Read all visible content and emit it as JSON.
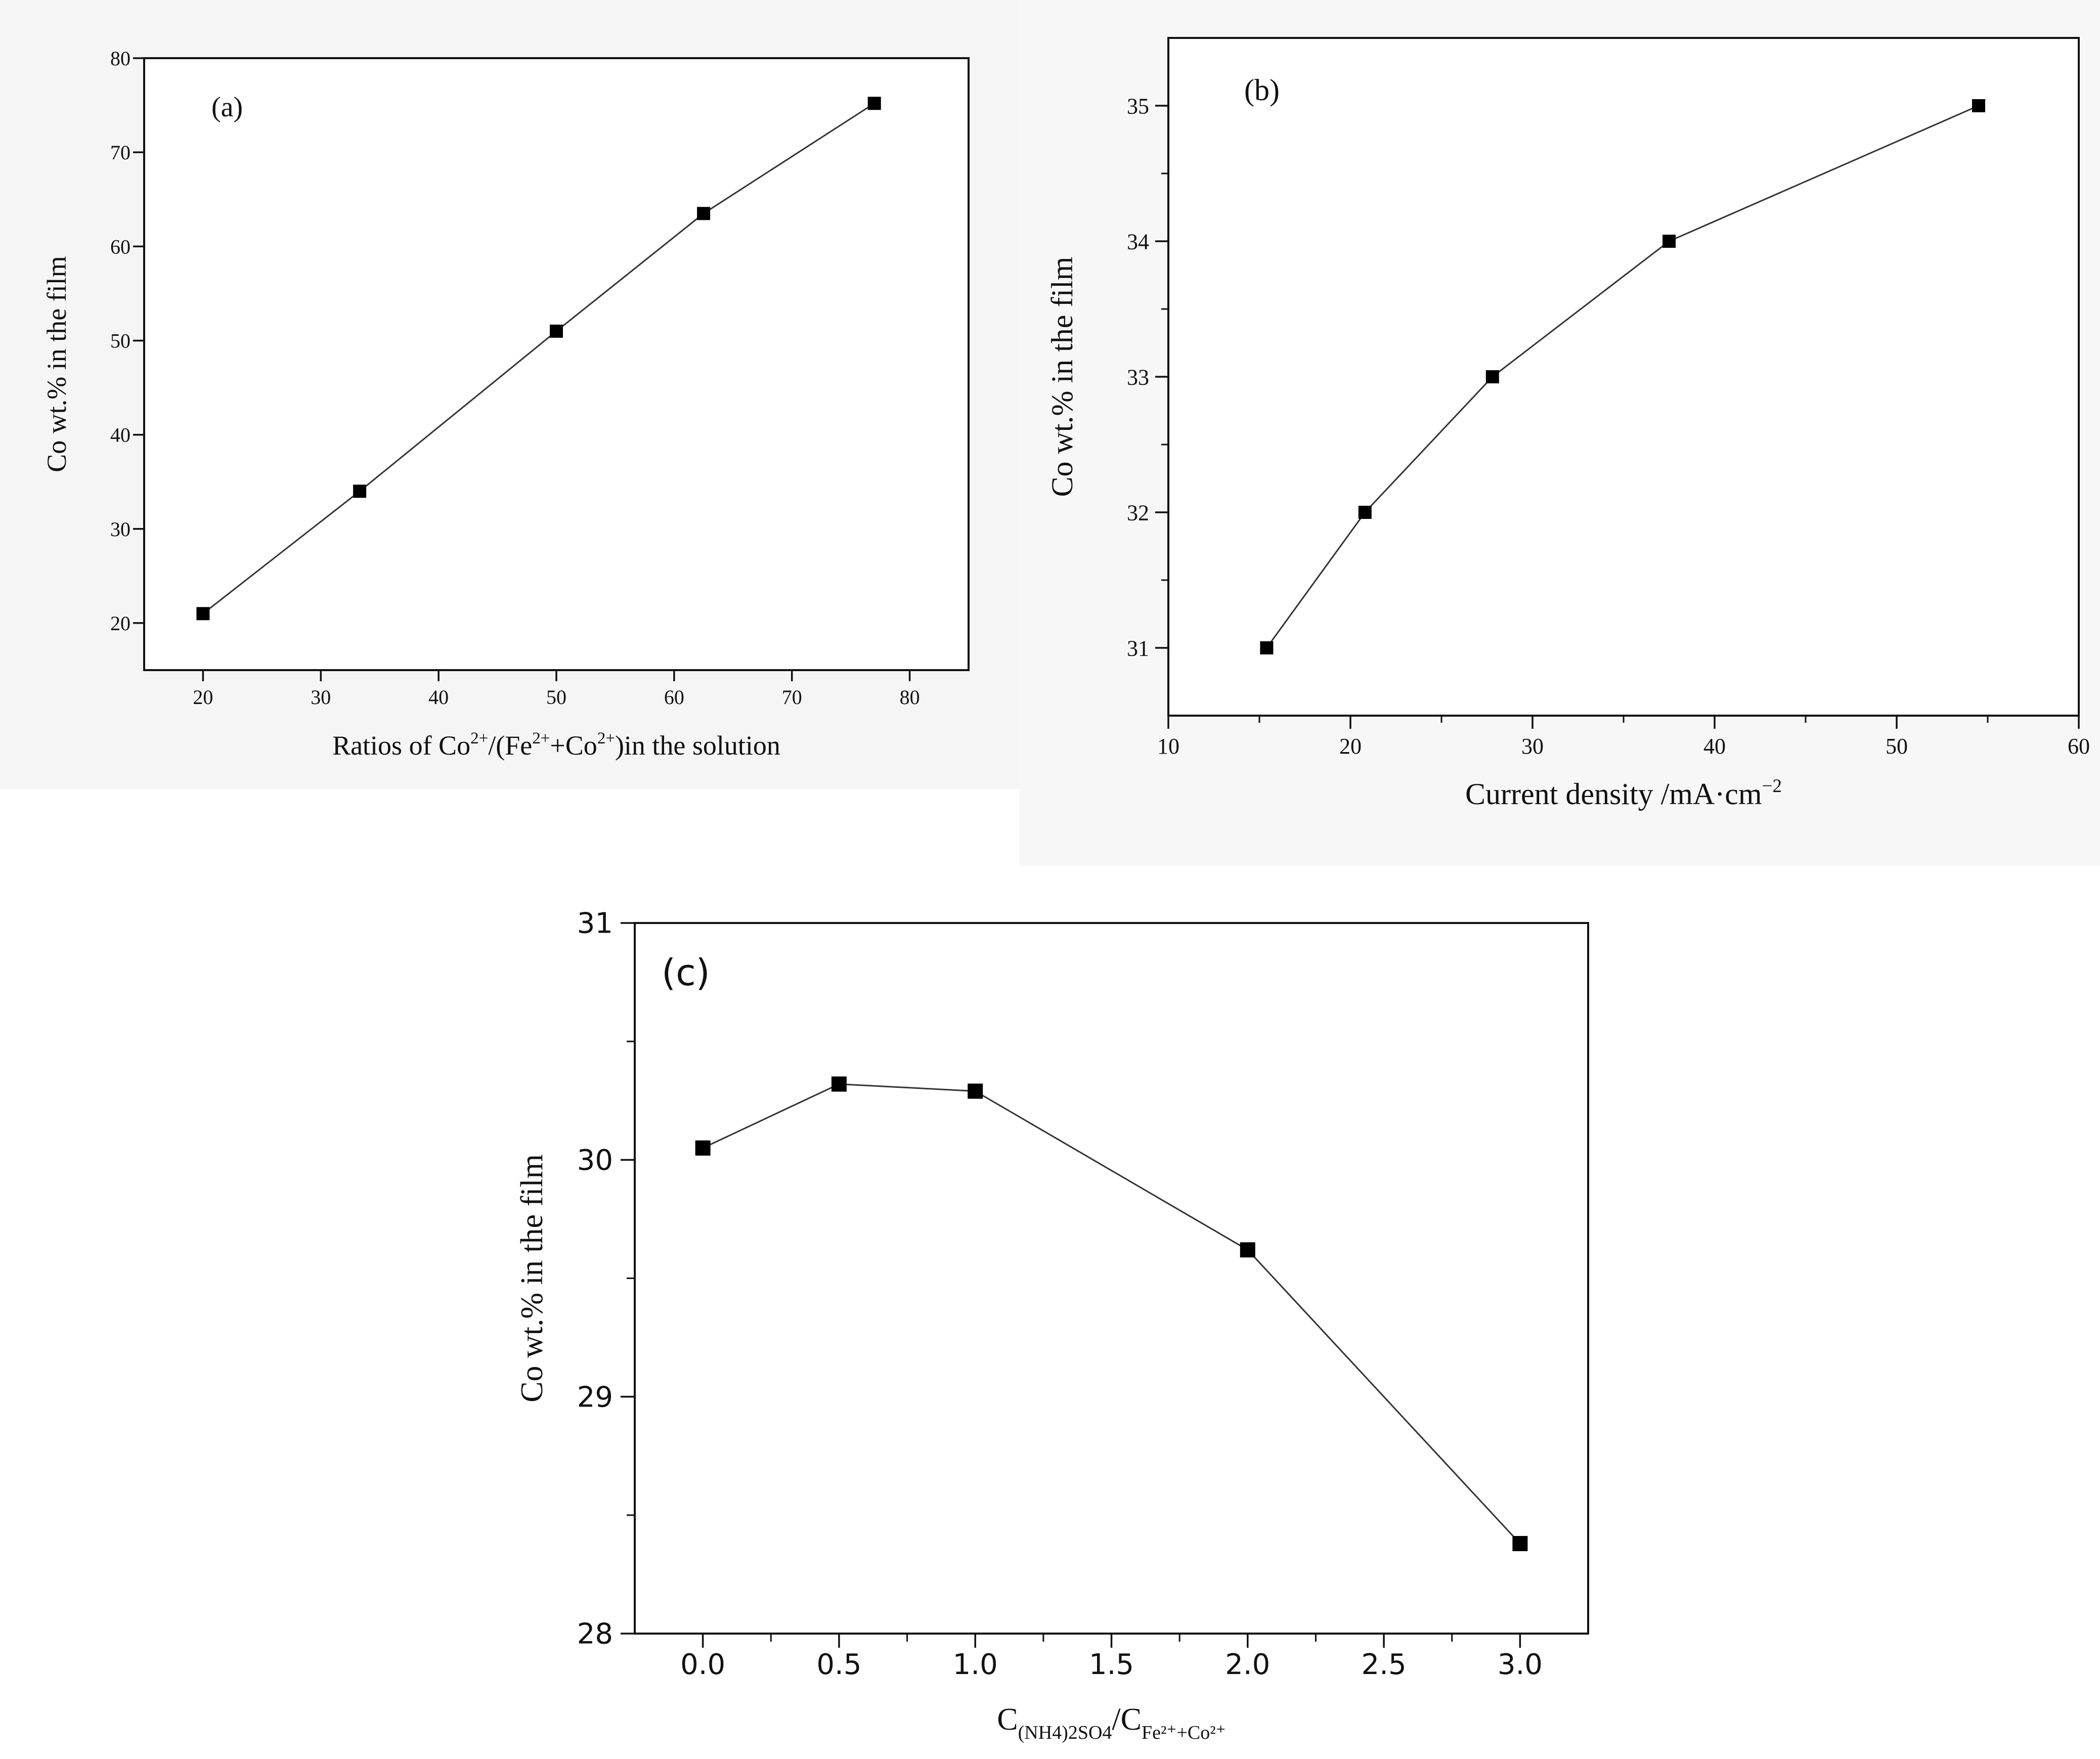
{
  "chart_data": [
    {
      "type": "line",
      "panel_label": "(a)",
      "title": "",
      "xlabel": {
        "base": "Ratios of Co",
        "sup1": "2+",
        "mid1": "/(Fe",
        "sup2": "2+",
        "mid2": "+Co",
        "sup3": "2+",
        "end": ")in the solution"
      },
      "ylabel": "Co wt.% in the film",
      "xlim": [
        15,
        85
      ],
      "ylim": [
        15,
        80
      ],
      "xticks": [
        20,
        30,
        40,
        50,
        60,
        70,
        80
      ],
      "yticks": [
        20,
        30,
        40,
        50,
        60,
        70,
        80
      ],
      "xminor": [],
      "yminor": [],
      "xtick_labels": [
        "20",
        "30",
        "40",
        "50",
        "60",
        "70",
        "80"
      ],
      "ytick_labels": [
        "20",
        "30",
        "40",
        "50",
        "60",
        "70",
        "80"
      ],
      "series": [
        {
          "name": "Co wt.%",
          "x": [
            20,
            33.3,
            50,
            62.5,
            77
          ],
          "y": [
            21,
            34,
            51,
            63.5,
            75.2
          ]
        }
      ]
    },
    {
      "type": "line",
      "panel_label": "(b)",
      "title": "",
      "xlabel": {
        "base": "Current density /mA·cm",
        "sup1": "−2"
      },
      "ylabel": "Co wt.% in the film",
      "xlim": [
        10,
        60
      ],
      "ylim": [
        30.5,
        35.5
      ],
      "xticks": [
        10,
        20,
        30,
        40,
        50,
        60
      ],
      "yticks": [
        31,
        32,
        33,
        34,
        35
      ],
      "xminor": [
        15,
        25,
        35,
        45,
        55
      ],
      "yminor": [
        31.5,
        32.5,
        33.5,
        34.5
      ],
      "xtick_labels": [
        "10",
        "20",
        "30",
        "40",
        "50",
        "60"
      ],
      "ytick_labels": [
        "31",
        "32",
        "33",
        "34",
        "35"
      ],
      "series": [
        {
          "name": "Co wt.%",
          "x": [
            15.4,
            20.8,
            27.8,
            37.5,
            54.5
          ],
          "y": [
            31,
            32,
            33,
            34,
            35
          ]
        }
      ]
    },
    {
      "type": "line",
      "panel_label": "(c)",
      "title": "",
      "xlabel": {
        "base": "C",
        "sub1": "(NH4)2SO4",
        "mid": "/C",
        "sub2": "Fe²⁺+Co²⁺"
      },
      "ylabel": "Co wt.% in the film",
      "xlim": [
        -0.25,
        3.25
      ],
      "ylim": [
        28,
        31
      ],
      "xticks": [
        0,
        0.5,
        1,
        1.5,
        2,
        2.5,
        3
      ],
      "yticks": [
        28,
        29,
        30,
        31
      ],
      "xminor": [
        0.25,
        0.75,
        1.25,
        1.75,
        2.25,
        2.75
      ],
      "yminor": [
        28.5,
        29.5,
        30.5
      ],
      "xtick_labels": [
        "0.0",
        "0.5",
        "1.0",
        "1.5",
        "2.0",
        "2.5",
        "3.0"
      ],
      "ytick_labels": [
        "28",
        "29",
        "30",
        "31"
      ],
      "series": [
        {
          "name": "Co wt.%",
          "x": [
            0,
            0.5,
            1,
            2,
            3
          ],
          "y": [
            30.05,
            30.32,
            30.29,
            29.62,
            28.38
          ]
        }
      ]
    }
  ]
}
